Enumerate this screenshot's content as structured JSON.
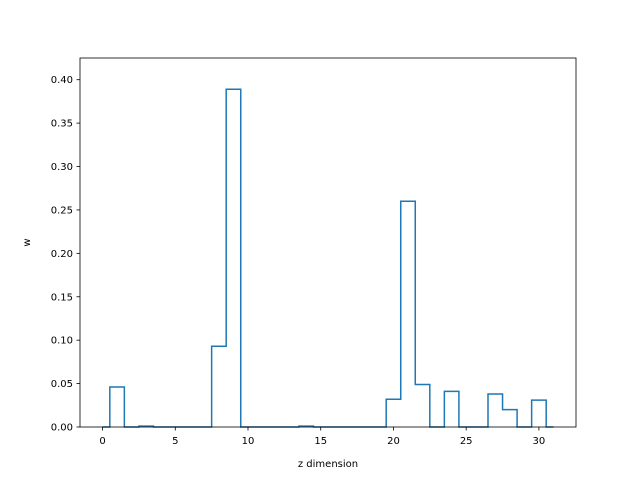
{
  "chart_data": {
    "type": "step",
    "xlabel": "z dimension",
    "ylabel": "w",
    "xlim": [
      -1.55,
      32.55
    ],
    "ylim": [
      0,
      0.425
    ],
    "xticks": [
      0,
      5,
      10,
      15,
      20,
      25,
      30
    ],
    "yticks": [
      0.0,
      0.05,
      0.1,
      0.15,
      0.2,
      0.25,
      0.3,
      0.35,
      0.4
    ],
    "ytick_labels": [
      "0.00",
      "0.05",
      "0.10",
      "0.15",
      "0.20",
      "0.25",
      "0.30",
      "0.35",
      "0.40"
    ],
    "line_color": "#1f77b4",
    "grid": false,
    "x": [
      0,
      1,
      2,
      3,
      4,
      5,
      6,
      7,
      8,
      9,
      10,
      11,
      12,
      13,
      14,
      15,
      16,
      17,
      18,
      19,
      20,
      21,
      22,
      23,
      24,
      25,
      26,
      27,
      28,
      29,
      30,
      31
    ],
    "values": [
      0.0,
      0.046,
      0.0,
      0.001,
      0.0,
      0.0,
      0.0,
      0.0,
      0.093,
      0.389,
      0.0,
      0.0,
      0.0,
      0.0,
      0.001,
      0.0,
      0.0,
      0.0,
      0.0,
      0.0,
      0.032,
      0.26,
      0.049,
      0.0,
      0.041,
      0.0,
      0.0,
      0.038,
      0.02,
      0.0,
      0.031,
      0.0
    ]
  }
}
